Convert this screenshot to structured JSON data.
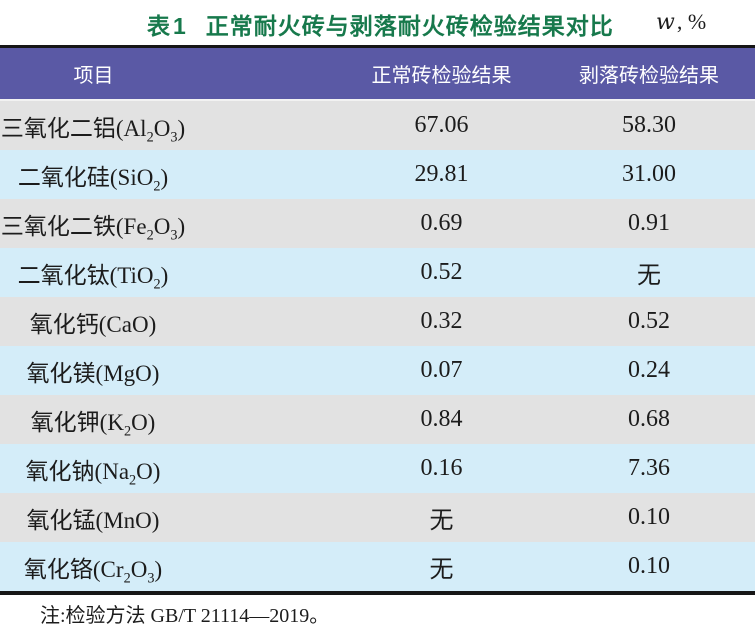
{
  "title": {
    "label": "表1",
    "text": "正常耐火砖与剥落耐火砖检验结果对比",
    "unit_symbol": "w",
    "unit_suffix": ", %"
  },
  "table": {
    "columns": {
      "item": "项目",
      "normal": "正常砖检验结果",
      "spalled": "剥落砖检验结果"
    },
    "rows": [
      {
        "item": "三氧化二铝(Al2O3)",
        "normal": "67.06",
        "spalled": "58.30"
      },
      {
        "item": "二氧化硅(SiO2)",
        "normal": "29.81",
        "spalled": "31.00"
      },
      {
        "item": "三氧化二铁(Fe2O3)",
        "normal": "0.69",
        "spalled": "0.91"
      },
      {
        "item": "二氧化钛(TiO2)",
        "normal": "0.52",
        "spalled": "无"
      },
      {
        "item": "氧化钙(CaO)",
        "normal": "0.32",
        "spalled": "0.52"
      },
      {
        "item": "氧化镁(MgO)",
        "normal": "0.07",
        "spalled": "0.24"
      },
      {
        "item": "氧化钾(K2O)",
        "normal": "0.84",
        "spalled": "0.68"
      },
      {
        "item": "氧化钠(Na2O)",
        "normal": "0.16",
        "spalled": "7.36"
      },
      {
        "item": "氧化锰(MnO)",
        "normal": "无",
        "spalled": "0.10"
      },
      {
        "item": "氧化铬(Cr2O3)",
        "normal": "无",
        "spalled": "0.10"
      }
    ]
  },
  "note": "注:检验方法 GB/T 21114—2019。",
  "colors": {
    "title_green": "#17794c",
    "header_bg": "#5a59a5",
    "row_gray": "#e2e2e2",
    "row_blue": "#d4edf9",
    "rule_black": "#161616"
  },
  "chart_data": {
    "type": "table",
    "title": "表1 正常耐火砖与剥落耐火砖检验结果对比 (w, %)",
    "columns": [
      "项目",
      "正常砖检验结果",
      "剥落砖检验结果"
    ],
    "rows": [
      [
        "三氧化二铝(Al2O3)",
        "67.06",
        "58.30"
      ],
      [
        "二氧化硅(SiO2)",
        "29.81",
        "31.00"
      ],
      [
        "三氧化二铁(Fe2O3)",
        "0.69",
        "0.91"
      ],
      [
        "二氧化钛(TiO2)",
        "0.52",
        "无"
      ],
      [
        "氧化钙(CaO)",
        "0.32",
        "0.52"
      ],
      [
        "氧化镁(MgO)",
        "0.07",
        "0.24"
      ],
      [
        "氧化钾(K2O)",
        "0.84",
        "0.68"
      ],
      [
        "氧化钠(Na2O)",
        "0.16",
        "7.36"
      ],
      [
        "氧化锰(MnO)",
        "无",
        "0.10"
      ],
      [
        "氧化铬(Cr2O3)",
        "无",
        "0.10"
      ]
    ],
    "note": "注:检验方法 GB/T 21114—2019。"
  }
}
